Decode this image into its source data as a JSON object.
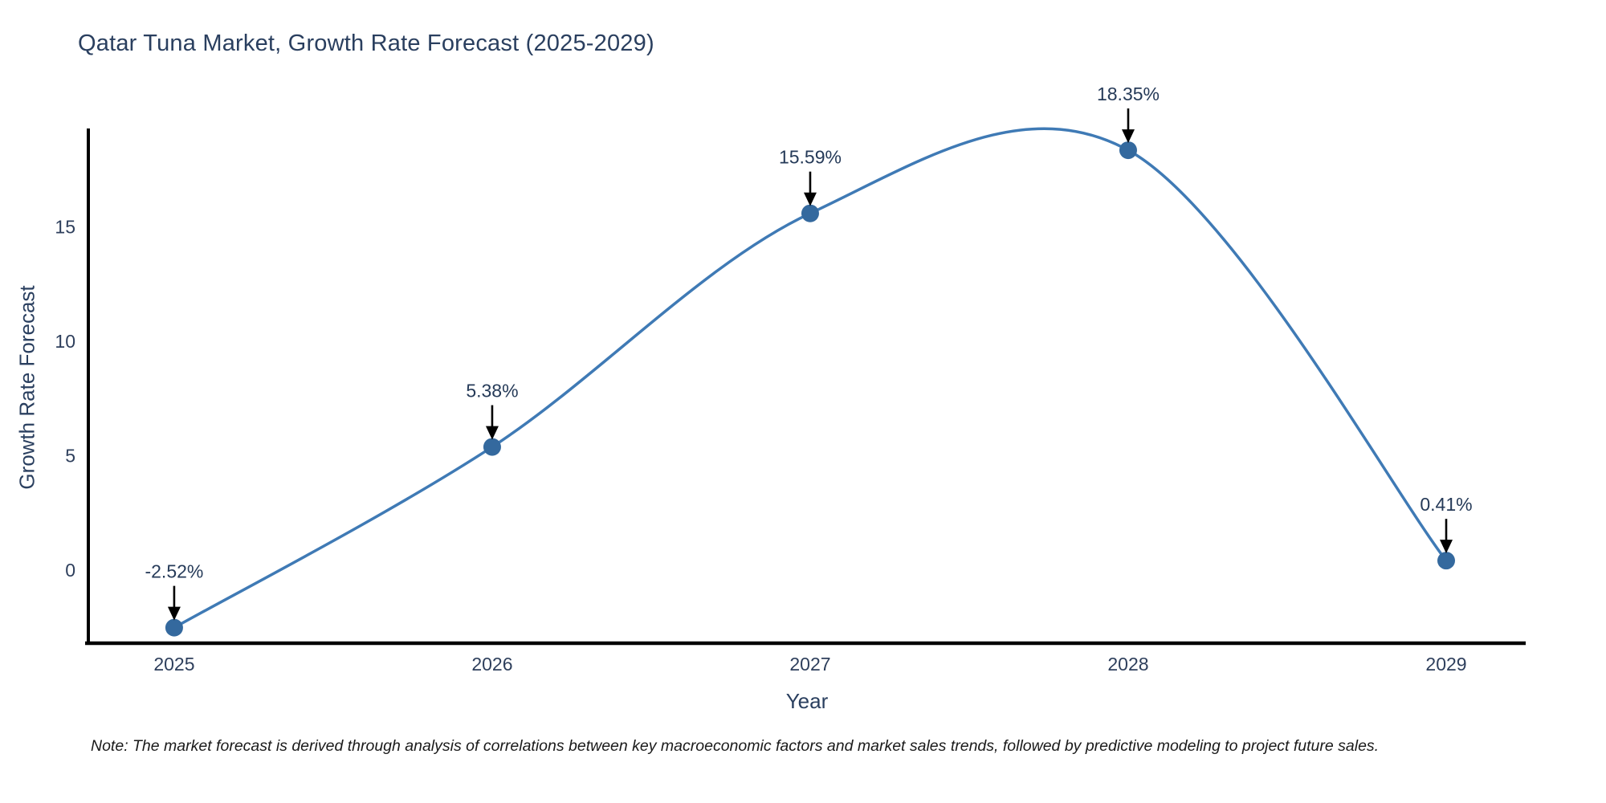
{
  "chart_data": {
    "type": "line",
    "title": "Qatar Tuna Market, Growth Rate Forecast (2025-2029)",
    "xlabel": "Year",
    "ylabel": "Growth Rate Forecast",
    "x": [
      2025,
      2026,
      2027,
      2028,
      2029
    ],
    "values": [
      -2.52,
      5.38,
      15.59,
      18.35,
      0.41
    ],
    "point_labels": [
      "-2.52%",
      "5.38%",
      "15.59%",
      "18.35%",
      "0.41%"
    ],
    "x_tick_labels": [
      "2025",
      "2026",
      "2027",
      "2028",
      "2029"
    ],
    "y_ticks": [
      0,
      5,
      10,
      15
    ],
    "xlim": [
      2024.73,
      2029.25
    ],
    "ylim": [
      -3.2,
      19.3
    ],
    "line_shape": "spline",
    "grid": false,
    "legend_position": "none",
    "line_color": "#3f7ab5",
    "marker_color": "#34699e",
    "arrow_color": "#000000",
    "axis_line_color": "#000000",
    "tick_color": "#2e3f5c",
    "title_color": "#2a3f5f"
  },
  "note": {
    "text": "Note: The market forecast is derived through analysis of correlations between key macroeconomic factors and market sales trends, followed by predictive modeling to project future sales."
  }
}
